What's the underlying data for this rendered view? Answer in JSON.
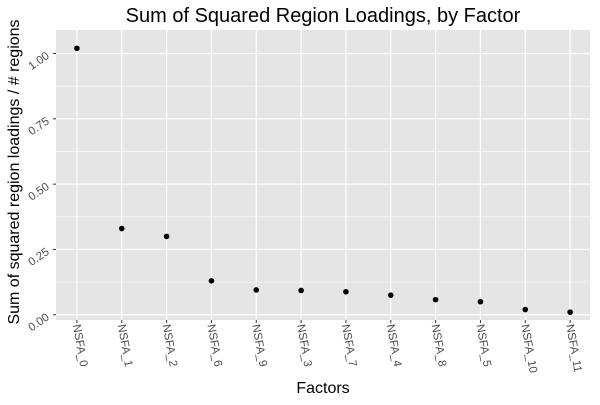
{
  "chart_data": {
    "type": "scatter",
    "title": "Sum of Squared Region Loadings, by Factor",
    "xlabel": "Factors",
    "ylabel": "Sum of squared region loadings / # regions",
    "categories": [
      "NSFA_0",
      "NSFA_1",
      "NSFA_2",
      "NSFA_6",
      "NSFA_9",
      "NSFA_3",
      "NSFA_7",
      "NSFA_4",
      "NSFA_8",
      "NSFA_5",
      "NSFA_10",
      "NSFA_11"
    ],
    "values": [
      1.02,
      0.33,
      0.3,
      0.13,
      0.095,
      0.093,
      0.088,
      0.075,
      0.058,
      0.05,
      0.02,
      0.01
    ],
    "ylim": [
      -0.02,
      1.09
    ],
    "yticks": [
      0.0,
      0.25,
      0.5,
      0.75,
      1.0
    ],
    "ytick_labels": [
      "0.00",
      "0.25",
      "0.50",
      "0.75",
      "1.00"
    ],
    "grid": true,
    "colors": {
      "panel": "#e5e5e5",
      "grid": "#ffffff",
      "point": "#000000",
      "text": "#4d4d4d"
    }
  }
}
